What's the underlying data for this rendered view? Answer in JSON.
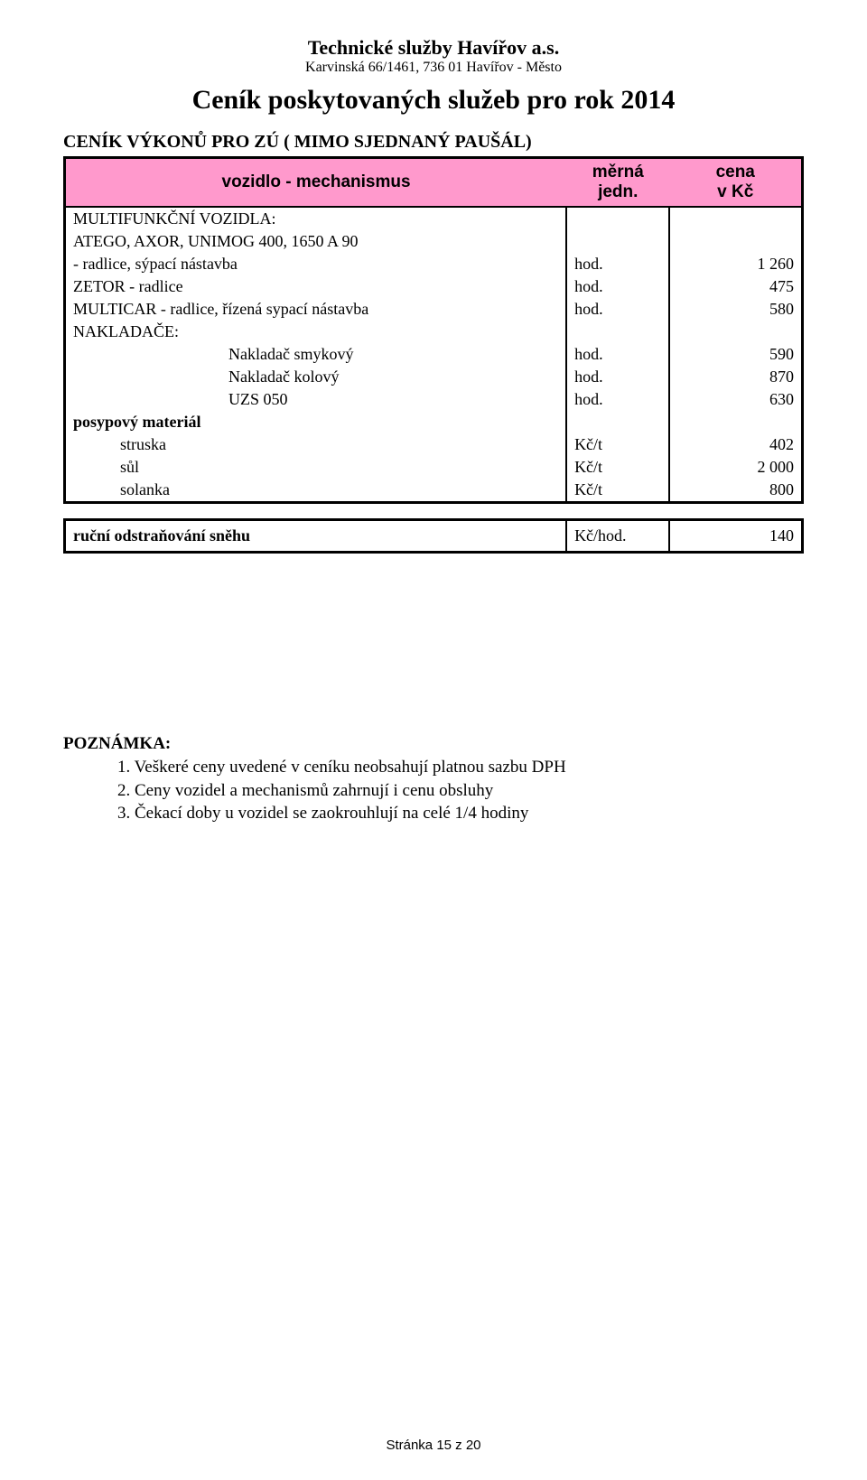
{
  "header": {
    "company_name": "Technické služby Havířov a.s.",
    "company_addr": "Karvinská 66/1461, 736 01 Havířov - Město",
    "main_title": "Ceník poskytovaných služeb pro rok 2014"
  },
  "section": {
    "title": "CENÍK VÝKONŮ PRO ZÚ ( MIMO SJEDNANÝ PAUŠÁL)"
  },
  "columns": {
    "c1": "vozidlo - mechanismus",
    "c2a": "měrná",
    "c2b": "jedn.",
    "c3a": "cena",
    "c3b": "v Kč"
  },
  "rows": [
    {
      "label": "MULTIFUNKČNÍ VOZIDLA:",
      "unit": "",
      "price": "",
      "cls": ""
    },
    {
      "label": "ATEGO, AXOR, UNIMOG 400, 1650 A 90",
      "unit": "",
      "price": "",
      "cls": ""
    },
    {
      "label": " - radlice, sýpací nástavba",
      "unit": "hod.",
      "price": "1 260",
      "cls": ""
    },
    {
      "label": "ZETOR - radlice",
      "unit": "hod.",
      "price": "475",
      "cls": ""
    },
    {
      "label": "MULTICAR - radlice, řízená sypací nástavba",
      "unit": "hod.",
      "price": "580",
      "cls": ""
    },
    {
      "label": "NAKLADAČE:",
      "unit": "",
      "price": "",
      "cls": ""
    },
    {
      "label": "Nakladač smykový",
      "unit": "hod.",
      "price": "590",
      "cls": "indent2"
    },
    {
      "label": "Nakladač kolový",
      "unit": "hod.",
      "price": "870",
      "cls": "indent2"
    },
    {
      "label": "UZS 050",
      "unit": "hod.",
      "price": "630",
      "cls": "indent2"
    },
    {
      "label": "posypový materiál",
      "unit": "",
      "price": "",
      "cls": "bold"
    },
    {
      "label": "struska",
      "unit": "Kč/t",
      "price": "402",
      "cls": "indent1"
    },
    {
      "label": "sůl",
      "unit": "Kč/t",
      "price": "2 000",
      "cls": "indent1"
    },
    {
      "label": "solanka",
      "unit": "Kč/t",
      "price": "800",
      "cls": "indent1 last"
    }
  ],
  "snow": {
    "label": "ruční odstraňování sněhu",
    "unit": "Kč/hod.",
    "price": "140"
  },
  "note": {
    "title": "POZNÁMKA:",
    "lines": [
      "1. Veškeré ceny uvedené v ceníku neobsahují  platnou sazbu DPH",
      "2. Ceny vozidel a mechanismů zahrnují i cenu obsluhy",
      "3. Čekací doby u vozidel se zaokrouhlují na celé 1/4 hodiny"
    ]
  },
  "footer": {
    "text": "Stránka 15 z 20"
  }
}
